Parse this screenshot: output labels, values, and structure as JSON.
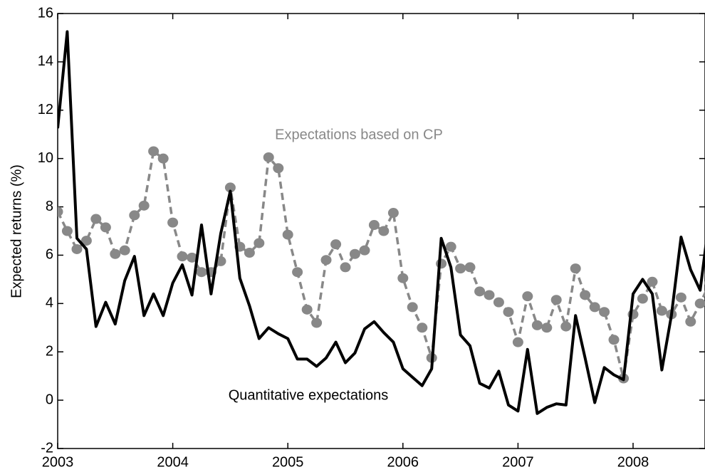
{
  "chart_data": {
    "type": "line",
    "ylabel": "Expected returns (%)",
    "x": [
      2003,
      2003.083,
      2003.167,
      2003.25,
      2003.333,
      2003.417,
      2003.5,
      2003.583,
      2003.667,
      2003.75,
      2003.833,
      2003.917,
      2004,
      2004.083,
      2004.167,
      2004.25,
      2004.333,
      2004.417,
      2004.5,
      2004.583,
      2004.667,
      2004.75,
      2004.833,
      2004.917,
      2005,
      2005.083,
      2005.167,
      2005.25,
      2005.333,
      2005.417,
      2005.5,
      2005.583,
      2005.667,
      2005.75,
      2005.833,
      2005.917,
      2006,
      2006.083,
      2006.167,
      2006.25,
      2006.333,
      2006.417,
      2006.5,
      2006.583,
      2006.667,
      2006.75,
      2006.833,
      2006.917,
      2007,
      2007.083,
      2007.167,
      2007.25,
      2007.333,
      2007.417,
      2007.5,
      2007.583,
      2007.667,
      2007.75,
      2007.833,
      2007.917,
      2008,
      2008.083,
      2008.167,
      2008.25,
      2008.333,
      2008.417,
      2008.5,
      2008.583,
      2008.667
    ],
    "series": [
      {
        "name": "Quantitative expectations",
        "color": "#000000",
        "dashed": false,
        "markers": false,
        "values": [
          11.25,
          15.25,
          6.7,
          6.25,
          3.05,
          4.05,
          3.15,
          4.95,
          5.95,
          3.5,
          4.4,
          3.5,
          4.85,
          5.6,
          4.35,
          7.25,
          4.4,
          6.9,
          8.65,
          5.05,
          3.9,
          2.55,
          3.0,
          2.75,
          2.55,
          1.7,
          1.7,
          1.4,
          1.75,
          2.4,
          1.55,
          1.95,
          2.95,
          3.25,
          2.8,
          2.4,
          1.3,
          0.95,
          0.6,
          1.3,
          6.7,
          5.5,
          2.7,
          2.25,
          0.7,
          0.5,
          1.2,
          -0.2,
          -0.45,
          2.1,
          -0.55,
          -0.3,
          -0.15,
          -0.2,
          3.5,
          1.75,
          -0.1,
          1.35,
          1.05,
          0.85,
          4.4,
          5.0,
          4.4,
          1.25,
          3.5,
          6.75,
          5.4,
          4.55,
          7.7
        ]
      },
      {
        "name": "Expectations based on CP",
        "color": "#888888",
        "dashed": true,
        "markers": true,
        "values": [
          7.8,
          7.0,
          6.25,
          6.6,
          7.5,
          7.15,
          6.05,
          6.2,
          7.65,
          8.05,
          10.3,
          10.0,
          7.35,
          5.95,
          5.9,
          5.3,
          5.3,
          5.75,
          8.8,
          6.35,
          6.1,
          6.5,
          10.05,
          9.6,
          6.85,
          5.3,
          3.75,
          3.2,
          5.8,
          6.45,
          5.5,
          6.05,
          6.2,
          7.25,
          7.0,
          7.75,
          5.05,
          3.85,
          3.0,
          1.75,
          5.65,
          6.35,
          5.45,
          5.5,
          4.5,
          4.35,
          4.05,
          3.65,
          2.4,
          4.3,
          3.1,
          3.0,
          4.15,
          3.05,
          5.45,
          4.35,
          3.85,
          3.65,
          2.5,
          0.9,
          3.55,
          4.2,
          4.9,
          3.7,
          3.55,
          4.25,
          3.25,
          4.0,
          4.85
        ]
      }
    ],
    "xlim": [
      2003,
      2008.625
    ],
    "xticks": [
      2003,
      2004,
      2005,
      2006,
      2007,
      2008
    ],
    "ylim": [
      -2,
      16
    ],
    "yticks": [
      -2,
      0,
      2,
      4,
      6,
      8,
      10,
      12,
      14,
      16
    ]
  }
}
